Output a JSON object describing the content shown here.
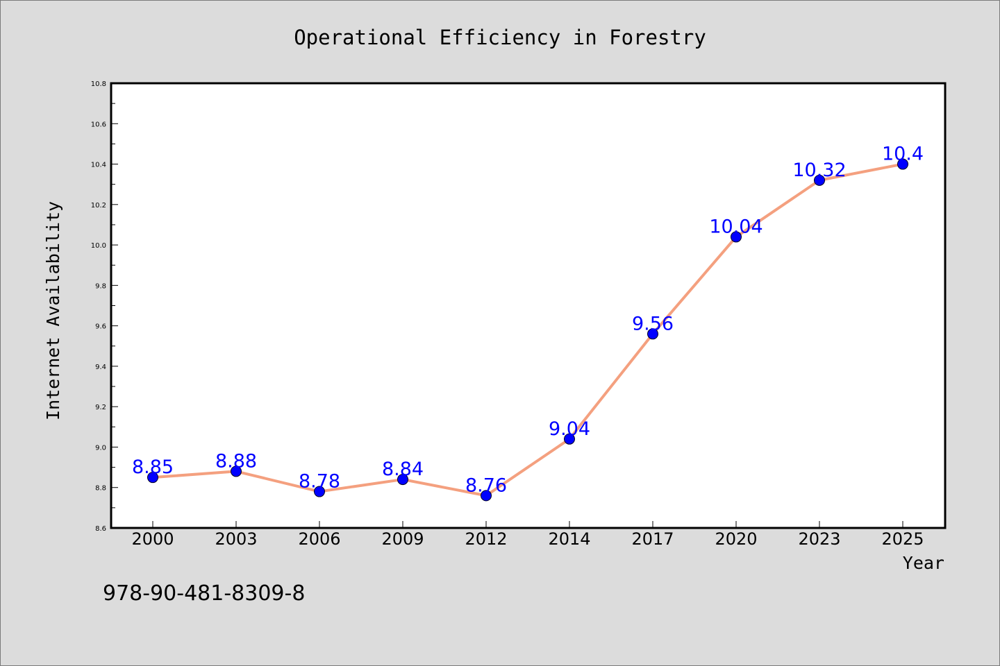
{
  "chart_data": {
    "type": "line",
    "title": "Operational Efficiency in Forestry",
    "xlabel": "Year",
    "ylabel": "Internet Availability",
    "categories": [
      "2000",
      "2003",
      "2006",
      "2009",
      "2012",
      "2014",
      "2017",
      "2020",
      "2023",
      "2025"
    ],
    "series": [
      {
        "values": [
          8.85,
          8.88,
          8.78,
          8.84,
          8.76,
          9.04,
          9.56,
          10.04,
          10.32,
          10.4
        ],
        "data_labels": [
          "8.85",
          "8.88",
          "8.78",
          "8.84",
          "8.76",
          "9.04",
          "9.56",
          "10.04",
          "10.32",
          "10.4"
        ]
      }
    ],
    "ylim": [
      8.6,
      10.8
    ],
    "yticks": [
      "8.6",
      "8.8",
      "9.0",
      "9.2",
      "9.4",
      "9.6",
      "9.8",
      "10.0",
      "10.2",
      "10.4",
      "10.6",
      "10.8"
    ],
    "grid": false,
    "legend": "none",
    "colors": {
      "line": "#f4a07f",
      "marker": "#0000ff",
      "data_label": "#0000ff",
      "plot_bg": "#ffffff",
      "figure_bg": "#dcdcdc"
    }
  },
  "footer": {
    "isbn": "978-90-481-8309-8"
  }
}
